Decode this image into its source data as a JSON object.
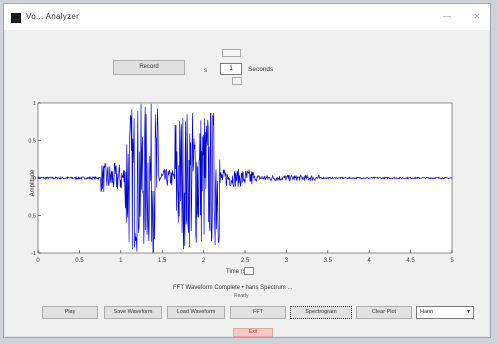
{
  "window": {
    "title": "Vo... Analyzer"
  },
  "controls": {
    "record_label": "Record",
    "seconds_prefix": "s",
    "seconds_value": "1",
    "seconds_label": "Seconds"
  },
  "chart_data": {
    "type": "line",
    "title": "",
    "xlabel": "",
    "ylabel": "Amplitude",
    "xlim": [
      0,
      5
    ],
    "ylim": [
      -1,
      1
    ],
    "x_ticks": [
      "0",
      "0.5",
      "1",
      "1.5",
      "2",
      "2.5",
      "3",
      "3.5",
      "4",
      "4.5",
      "5"
    ],
    "y_ticks": [
      "-1",
      "-0.5",
      "0",
      "0.5",
      "1"
    ],
    "series": [
      {
        "name": "",
        "color": "#0000dd",
        "segments": [
          {
            "t0": 0.0,
            "t1": 0.75,
            "amp": 0.015
          },
          {
            "t0": 0.75,
            "t1": 1.05,
            "amp": 0.2
          },
          {
            "t0": 1.05,
            "t1": 1.45,
            "amp": 1.0
          },
          {
            "t0": 1.45,
            "t1": 1.65,
            "amp": 0.12
          },
          {
            "t0": 1.65,
            "t1": 2.2,
            "amp": 0.95
          },
          {
            "t0": 2.2,
            "t1": 2.6,
            "amp": 0.12
          },
          {
            "t0": 2.6,
            "t1": 3.4,
            "amp": 0.04
          },
          {
            "t0": 3.4,
            "t1": 5.0,
            "amp": 0.01
          }
        ]
      }
    ]
  },
  "xaxis_label": "Time (s)",
  "status": {
    "line1": "FFT Waveform Complete • hans Spectrum ...",
    "line2": "Ready"
  },
  "toolbar": {
    "b1": "Play",
    "b2": "Save Waveform",
    "b3": "Load Waveform",
    "b4": "FFT",
    "b5": "Spectrogram",
    "b6": "Clear Plot",
    "select_value": "Hann"
  },
  "bottom_button": "Exit"
}
